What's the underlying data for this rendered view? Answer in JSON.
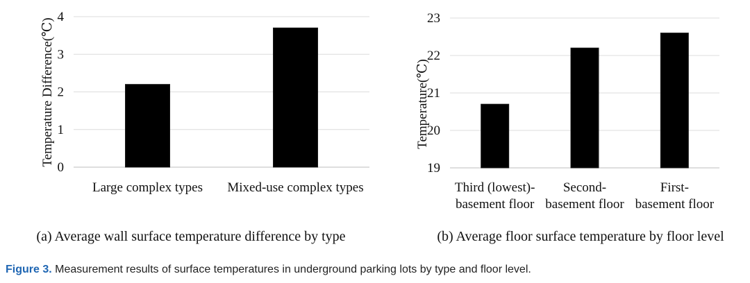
{
  "chart_data": [
    {
      "type": "bar",
      "panel_label": "(a) Average wall surface temperature difference by type",
      "categories": [
        "Large complex types",
        "Mixed-use complex types"
      ],
      "values": [
        2.2,
        3.7
      ],
      "xlabel": "",
      "ylabel": "Temperature Difference(℃)",
      "ylim": [
        0,
        4
      ],
      "yticks": [
        "0",
        "1",
        "2",
        "3",
        "4"
      ],
      "grid": true,
      "bar_color": "#000000"
    },
    {
      "type": "bar",
      "panel_label": "(b) Average floor surface temperature by floor level",
      "categories": [
        [
          "Third (lowest)-",
          "basement floor"
        ],
        [
          "Second-",
          "basement floor"
        ],
        [
          "First-",
          "basement floor"
        ]
      ],
      "values": [
        20.7,
        22.2,
        22.6
      ],
      "xlabel": "",
      "ylabel": "Temperature(℃)",
      "ylim": [
        19,
        23
      ],
      "yticks": [
        "19",
        "20",
        "21",
        "22",
        "23"
      ],
      "grid": true,
      "bar_color": "#000000"
    }
  ],
  "caption": {
    "label": "Figure 3.",
    "text": " Measurement results of surface temperatures in underground parking lots by type and floor level."
  }
}
